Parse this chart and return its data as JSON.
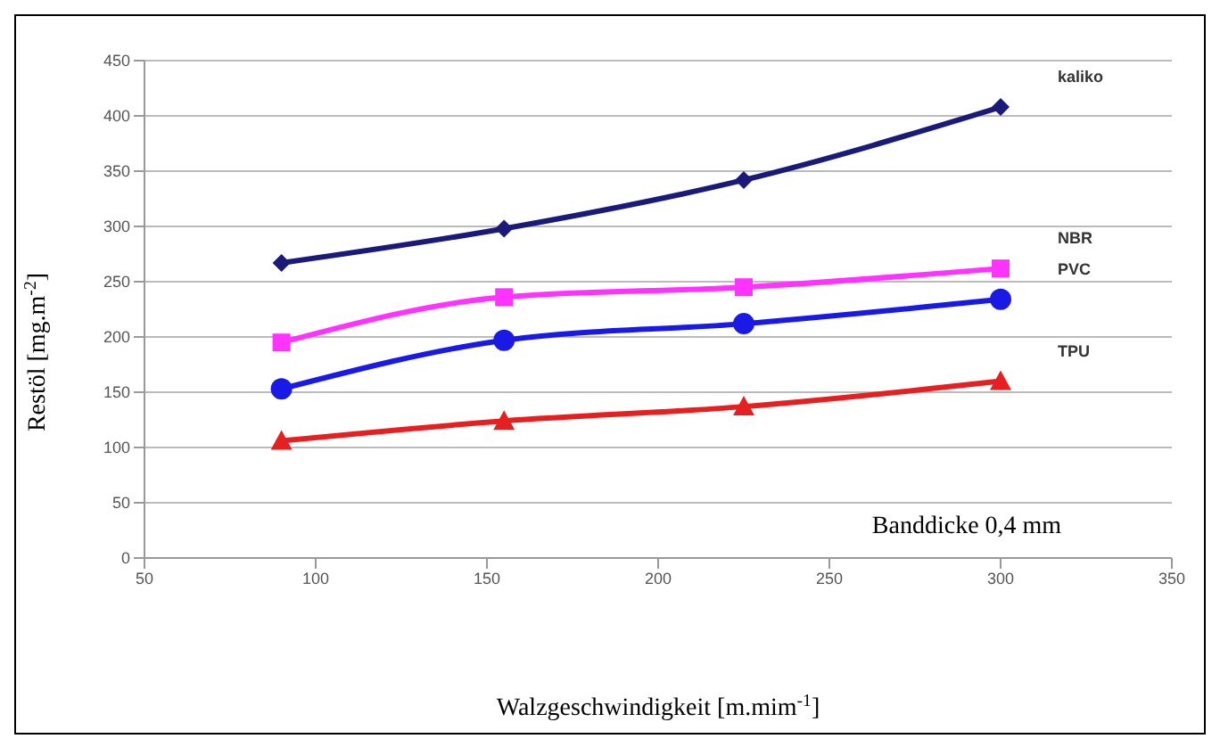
{
  "chart_data": {
    "type": "line",
    "xlabel": "Walzgeschwindigkeit  [m.mim$^{-1}$]",
    "ylabel": "Restöl  [mg.m$^{-2}$]",
    "x": [
      90,
      155,
      225,
      300
    ],
    "series": [
      {
        "name": "kaliko",
        "color": "#1a1a7a",
        "marker": "diamond",
        "values": [
          267,
          298,
          342,
          408
        ]
      },
      {
        "name": "NBR",
        "color": "#ff33ff",
        "marker": "square",
        "values": [
          195,
          236,
          245,
          262
        ]
      },
      {
        "name": "PVC",
        "color": "#1a1ae6",
        "marker": "circle",
        "values": [
          153,
          197,
          212,
          234
        ]
      },
      {
        "name": "TPU",
        "color": "#e62020",
        "marker": "triangle",
        "values": [
          106,
          124,
          137,
          160
        ]
      }
    ],
    "xlim": [
      50,
      350
    ],
    "xticks": [
      50,
      100,
      150,
      200,
      250,
      300,
      350
    ],
    "ylim": [
      0,
      450
    ],
    "yticks": [
      0,
      50,
      100,
      150,
      200,
      250,
      300,
      350,
      400,
      450
    ],
    "grid": "y",
    "annotations": [
      "Banddicke 0,4 mm"
    ]
  }
}
